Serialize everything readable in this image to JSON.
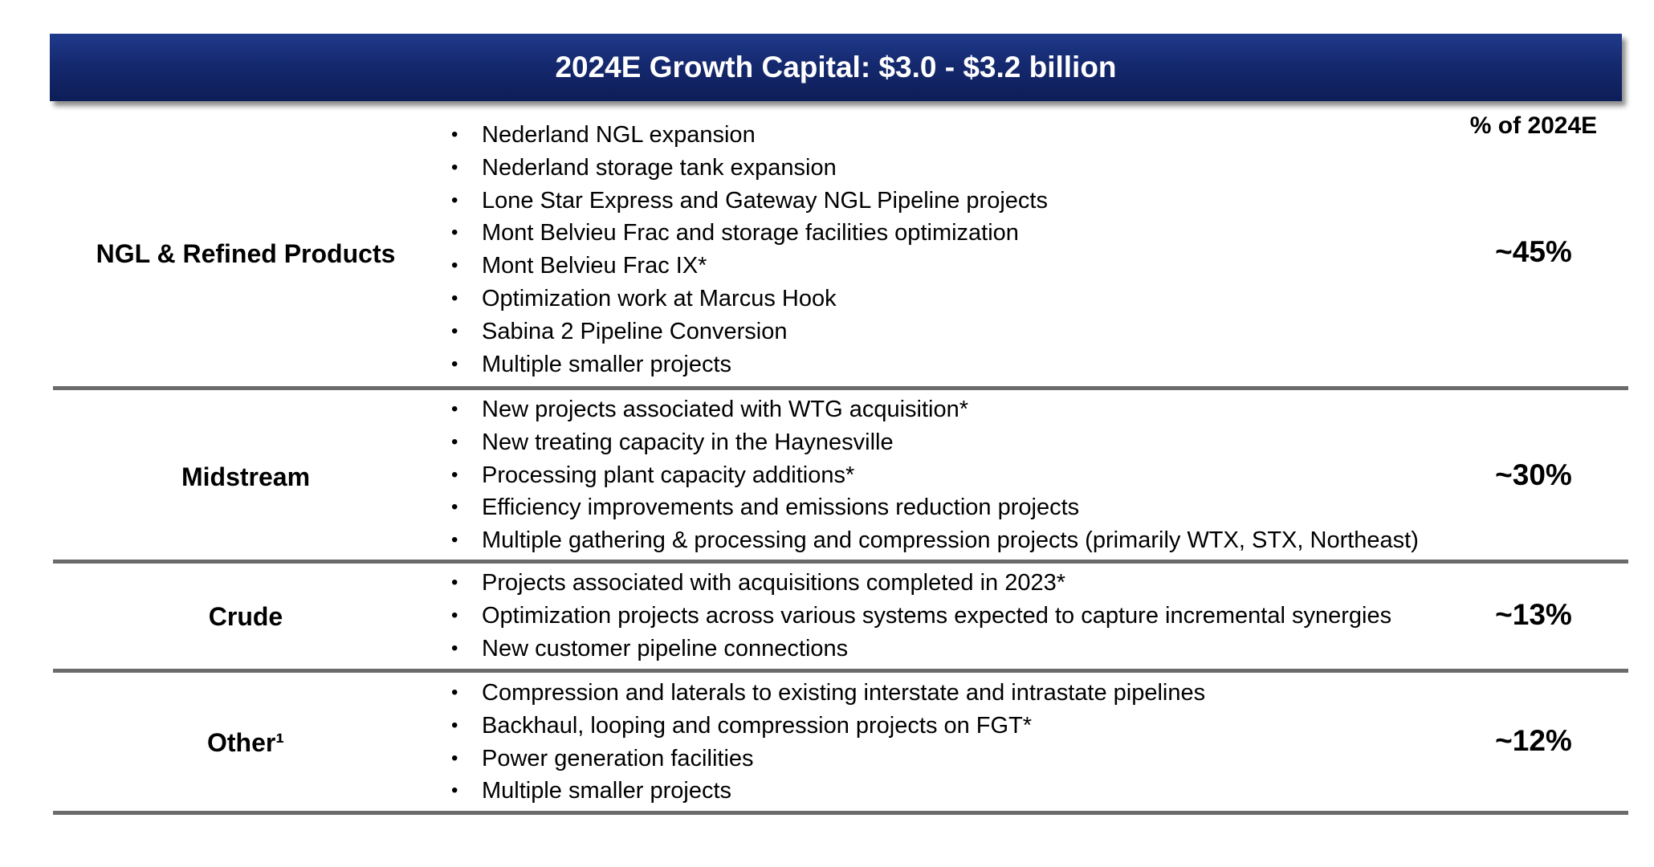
{
  "header": {
    "title": "2024E Growth Capital: $3.0 - $3.2 billion"
  },
  "pct_column_header": "% of 2024E",
  "sections": [
    {
      "label": "NGL & Refined Products",
      "percent": "~45%",
      "items": [
        "Nederland NGL expansion",
        "Nederland storage tank expansion",
        "Lone Star Express and Gateway NGL Pipeline projects",
        "Mont Belvieu Frac and storage facilities optimization",
        "Mont Belvieu Frac IX*",
        "Optimization work at Marcus Hook",
        "Sabina 2 Pipeline Conversion",
        "Multiple smaller projects"
      ]
    },
    {
      "label": "Midstream",
      "percent": "~30%",
      "items": [
        "New projects associated with WTG acquisition*",
        "New treating capacity in the Haynesville",
        "Processing plant capacity additions*",
        "Efficiency improvements and emissions reduction projects",
        "Multiple gathering & processing and compression projects (primarily WTX, STX, Northeast)"
      ]
    },
    {
      "label": "Crude",
      "percent": "~13%",
      "items": [
        "Projects associated with acquisitions completed in 2023*",
        "Optimization projects across various systems expected to capture incremental synergies",
        "New customer pipeline connections"
      ]
    },
    {
      "label": "Other¹",
      "percent": "~12%",
      "items": [
        "Compression and laterals to existing interstate and intrastate pipelines",
        "Backhaul, looping and compression projects on FGT*",
        "Power generation facilities",
        "Multiple smaller projects"
      ]
    }
  ],
  "colors": {
    "header_bg": "#15296f",
    "header_text": "#ffffff",
    "divider": "#6b6b6b"
  }
}
